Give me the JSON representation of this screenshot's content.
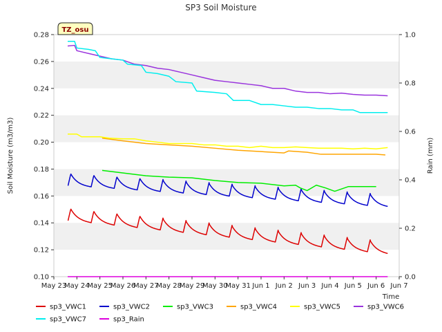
{
  "chart_data": {
    "type": "line",
    "title": "SP3 Soil Moisture",
    "badge": "TZ_osu",
    "xlabel": "Time",
    "ylabel": "Soil Moisture (m3/m3)",
    "y2label": "Rain (mm)",
    "x_ticks": [
      "May 23",
      "May 24",
      "May 25",
      "May 26",
      "May 27",
      "May 28",
      "May 29",
      "May 30",
      "May 31",
      "Jun 1",
      "Jun 2",
      "Jun 3",
      "Jun 4",
      "Jun 5",
      "Jun 6",
      "Jun 7"
    ],
    "xlim_days": [
      0,
      15
    ],
    "ylim": [
      0.1,
      0.28
    ],
    "y_ticks": [
      "0.10",
      "0.12",
      "0.14",
      "0.16",
      "0.18",
      "0.20",
      "0.22",
      "0.24",
      "0.26",
      "0.28"
    ],
    "y2lim": [
      0.0,
      1.0
    ],
    "y2_ticks": [
      "0.0",
      "0.2",
      "0.4",
      "0.6",
      "0.8",
      "1.0"
    ],
    "series": [
      {
        "name": "sp3_VWC1",
        "color": "#dd0000",
        "axis": "left",
        "type": "diurnal",
        "start": 0.6,
        "end": 14.5,
        "base_start": 0.142,
        "base_end": 0.117,
        "amp": 0.009
      },
      {
        "name": "sp3_VWC2",
        "color": "#0000cc",
        "axis": "left",
        "type": "diurnal",
        "start": 0.6,
        "end": 14.5,
        "base_start": 0.168,
        "base_end": 0.152,
        "amp": 0.009
      },
      {
        "name": "sp3_VWC3",
        "color": "#00ee00",
        "axis": "left",
        "points": [
          [
            2.1,
            0.179
          ],
          [
            4.0,
            0.175
          ],
          [
            5.0,
            0.174
          ],
          [
            6.0,
            0.1735
          ],
          [
            7.0,
            0.1715
          ],
          [
            8.0,
            0.17
          ],
          [
            9.0,
            0.1695
          ],
          [
            10.0,
            0.1675
          ],
          [
            10.5,
            0.168
          ],
          [
            10.7,
            0.166
          ],
          [
            11.0,
            0.164
          ],
          [
            11.4,
            0.168
          ],
          [
            11.8,
            0.166
          ],
          [
            12.2,
            0.1635
          ],
          [
            12.8,
            0.167
          ],
          [
            13.3,
            0.167
          ],
          [
            14.0,
            0.167
          ]
        ]
      },
      {
        "name": "sp3_VWC4",
        "color": "#ffa500",
        "axis": "left",
        "points": [
          [
            2.1,
            0.203
          ],
          [
            3.0,
            0.201
          ],
          [
            4.0,
            0.199
          ],
          [
            5.0,
            0.198
          ],
          [
            6.0,
            0.197
          ],
          [
            7.0,
            0.1955
          ],
          [
            8.0,
            0.194
          ],
          [
            9.0,
            0.193
          ],
          [
            10.0,
            0.192
          ],
          [
            10.2,
            0.1935
          ],
          [
            11.0,
            0.1925
          ],
          [
            11.6,
            0.191
          ],
          [
            13.0,
            0.191
          ],
          [
            14.0,
            0.191
          ],
          [
            14.4,
            0.1905
          ]
        ]
      },
      {
        "name": "sp3_VWC5",
        "color": "#ffff00",
        "axis": "left",
        "points": [
          [
            0.6,
            0.206
          ],
          [
            1.0,
            0.206
          ],
          [
            1.2,
            0.204
          ],
          [
            2.0,
            0.204
          ],
          [
            2.4,
            0.203
          ],
          [
            3.0,
            0.2025
          ],
          [
            3.5,
            0.2025
          ],
          [
            4.0,
            0.201
          ],
          [
            4.5,
            0.2
          ],
          [
            5.0,
            0.199
          ],
          [
            6.0,
            0.199
          ],
          [
            6.5,
            0.198
          ],
          [
            7.0,
            0.198
          ],
          [
            7.5,
            0.197
          ],
          [
            8.0,
            0.197
          ],
          [
            8.5,
            0.196
          ],
          [
            9.0,
            0.197
          ],
          [
            9.5,
            0.196
          ],
          [
            10.0,
            0.196
          ],
          [
            10.5,
            0.1965
          ],
          [
            11.0,
            0.196
          ],
          [
            11.5,
            0.1955
          ],
          [
            12.0,
            0.1955
          ],
          [
            12.5,
            0.1955
          ],
          [
            13.0,
            0.195
          ],
          [
            13.5,
            0.1955
          ],
          [
            14.0,
            0.195
          ],
          [
            14.5,
            0.196
          ]
        ]
      },
      {
        "name": "sp3_VWC6",
        "color": "#9933dd",
        "axis": "left",
        "points": [
          [
            0.6,
            0.2715
          ],
          [
            0.9,
            0.272
          ],
          [
            1.0,
            0.268
          ],
          [
            1.5,
            0.266
          ],
          [
            2.0,
            0.264
          ],
          [
            2.5,
            0.262
          ],
          [
            3.0,
            0.261
          ],
          [
            3.5,
            0.258
          ],
          [
            4.0,
            0.257
          ],
          [
            4.5,
            0.255
          ],
          [
            5.0,
            0.254
          ],
          [
            5.5,
            0.252
          ],
          [
            6.0,
            0.25
          ],
          [
            6.5,
            0.248
          ],
          [
            7.0,
            0.246
          ],
          [
            7.5,
            0.245
          ],
          [
            8.0,
            0.244
          ],
          [
            8.5,
            0.243
          ],
          [
            9.0,
            0.242
          ],
          [
            9.5,
            0.24
          ],
          [
            10.0,
            0.24
          ],
          [
            10.5,
            0.238
          ],
          [
            11.0,
            0.237
          ],
          [
            11.5,
            0.237
          ],
          [
            12.0,
            0.236
          ],
          [
            12.5,
            0.2365
          ],
          [
            13.0,
            0.2355
          ],
          [
            13.5,
            0.235
          ],
          [
            14.0,
            0.235
          ],
          [
            14.5,
            0.2345
          ]
        ]
      },
      {
        "name": "sp3_VWC7",
        "color": "#00eeee",
        "axis": "left",
        "points": [
          [
            0.6,
            0.275
          ],
          [
            0.9,
            0.275
          ],
          [
            1.0,
            0.27
          ],
          [
            1.5,
            0.269
          ],
          [
            1.8,
            0.268
          ],
          [
            2.0,
            0.263
          ],
          [
            2.5,
            0.262
          ],
          [
            3.0,
            0.261
          ],
          [
            3.2,
            0.258
          ],
          [
            3.8,
            0.257
          ],
          [
            4.0,
            0.252
          ],
          [
            4.5,
            0.251
          ],
          [
            5.0,
            0.249
          ],
          [
            5.3,
            0.245
          ],
          [
            6.0,
            0.244
          ],
          [
            6.2,
            0.238
          ],
          [
            7.0,
            0.237
          ],
          [
            7.5,
            0.236
          ],
          [
            7.8,
            0.231
          ],
          [
            8.5,
            0.231
          ],
          [
            9.0,
            0.228
          ],
          [
            9.5,
            0.228
          ],
          [
            10.0,
            0.227
          ],
          [
            10.5,
            0.226
          ],
          [
            11.0,
            0.226
          ],
          [
            11.5,
            0.225
          ],
          [
            12.0,
            0.225
          ],
          [
            12.5,
            0.224
          ],
          [
            13.0,
            0.224
          ],
          [
            13.3,
            0.222
          ],
          [
            14.0,
            0.222
          ],
          [
            14.5,
            0.222
          ]
        ]
      },
      {
        "name": "sp3_Rain",
        "color": "#dd00dd",
        "axis": "right",
        "points": [
          [
            0.6,
            0.0
          ],
          [
            14.5,
            0.0
          ]
        ]
      }
    ]
  }
}
